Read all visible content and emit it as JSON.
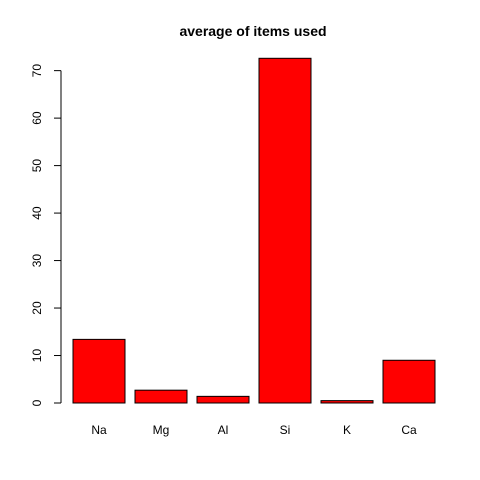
{
  "chart_data": {
    "type": "bar",
    "title": "average of items used",
    "xlabel": "",
    "ylabel": "",
    "categories": [
      "Na",
      "Mg",
      "Al",
      "Si",
      "K",
      "Ca"
    ],
    "values": [
      13.4,
      2.7,
      1.4,
      72.6,
      0.5,
      9.0
    ],
    "ylim": [
      0,
      75
    ],
    "yticks": [
      0,
      10,
      20,
      30,
      40,
      50,
      60,
      70
    ],
    "ytick_labels": [
      "0",
      "10",
      "20",
      "30",
      "40",
      "50",
      "60",
      "70"
    ],
    "bar_color": "#ff0000",
    "bar_outline_color": "#000000",
    "grid": false,
    "legend": "none"
  }
}
